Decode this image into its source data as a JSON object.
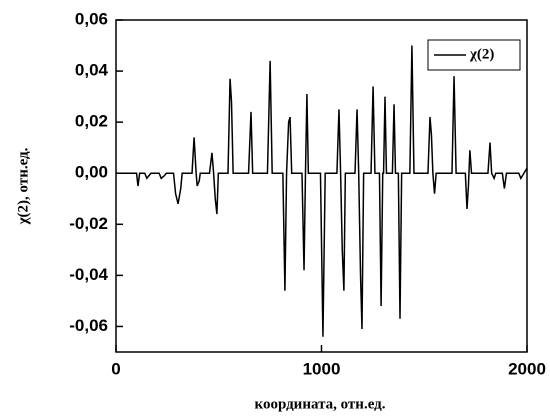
{
  "chart_data": {
    "type": "line",
    "x_label": "координата, отн.ед.",
    "y_label": "χ(2), отн.ед.",
    "xlim": [
      0,
      2000
    ],
    "xticks": [
      0,
      1000,
      2000
    ],
    "ylim": [
      -0.07,
      0.06
    ],
    "yticks": [
      {
        "value": -0.06,
        "label": "-0,06"
      },
      {
        "value": -0.04,
        "label": "-0,04"
      },
      {
        "value": -0.02,
        "label": "-0,02"
      },
      {
        "value": 0,
        "label": "0,00"
      },
      {
        "value": 0.02,
        "label": "0,02"
      },
      {
        "value": 0.04,
        "label": "0,04"
      },
      {
        "value": 0.06,
        "label": "0,06"
      }
    ],
    "legend": "upper right",
    "x": [
      0,
      100,
      107,
      115,
      140,
      150,
      160,
      170,
      210,
      220,
      235,
      245,
      280,
      290,
      302,
      315,
      322,
      370,
      380,
      390,
      395,
      405,
      410,
      455,
      467,
      475,
      483,
      491,
      498,
      545,
      555,
      562,
      570,
      645,
      657,
      665,
      737,
      750,
      760,
      812,
      822,
      830,
      840,
      847,
      855,
      905,
      915,
      922,
      929,
      936,
      995,
      1007,
      1018,
      1075,
      1085,
      1093,
      1101,
      1109,
      1116,
      1163,
      1173,
      1181,
      1190,
      1197,
      1205,
      1241,
      1251,
      1260,
      1282,
      1290,
      1298,
      1302,
      1309,
      1316,
      1345,
      1353,
      1360,
      1374,
      1382,
      1390,
      1430,
      1440,
      1450,
      1518,
      1528,
      1535,
      1542,
      1550,
      1558,
      1635,
      1645,
      1655,
      1700,
      1708,
      1715,
      1722,
      1730,
      1810,
      1820,
      1828,
      1840,
      1848,
      1880,
      1890,
      1900,
      1960,
      1970,
      1985,
      2000
    ],
    "series": [
      {
        "name": "χ(2)",
        "color": "#000000",
        "values": [
          0,
          0,
          -0.005,
          0,
          0,
          -0.002,
          -0.001,
          0,
          0,
          -0.002,
          -0.001,
          0,
          0,
          -0.008,
          -0.012,
          -0.006,
          0,
          0,
          0.014,
          0,
          -0.005,
          -0.003,
          0,
          0,
          0.008,
          0,
          -0.01,
          -0.016,
          0,
          0,
          0.037,
          0.028,
          0,
          0,
          0.024,
          0,
          0,
          0.044,
          0,
          0,
          -0.046,
          0,
          0.02,
          0.022,
          0,
          0,
          -0.038,
          0,
          0.031,
          0,
          0,
          -0.064,
          0,
          0,
          0.025,
          0,
          -0.03,
          -0.046,
          0,
          0,
          0.025,
          0,
          -0.04,
          -0.061,
          0,
          0,
          0.034,
          0,
          0,
          -0.052,
          0,
          0,
          0.03,
          0,
          0,
          0.027,
          0,
          0,
          -0.057,
          0,
          0,
          0.05,
          0,
          0,
          0.022,
          0.015,
          0,
          -0.008,
          0,
          0,
          0.038,
          0,
          0,
          -0.014,
          -0.005,
          0.009,
          0,
          0,
          0.012,
          0,
          -0.002,
          0,
          0,
          -0.006,
          0,
          0,
          -0.002,
          0,
          0.002
        ]
      }
    ]
  }
}
